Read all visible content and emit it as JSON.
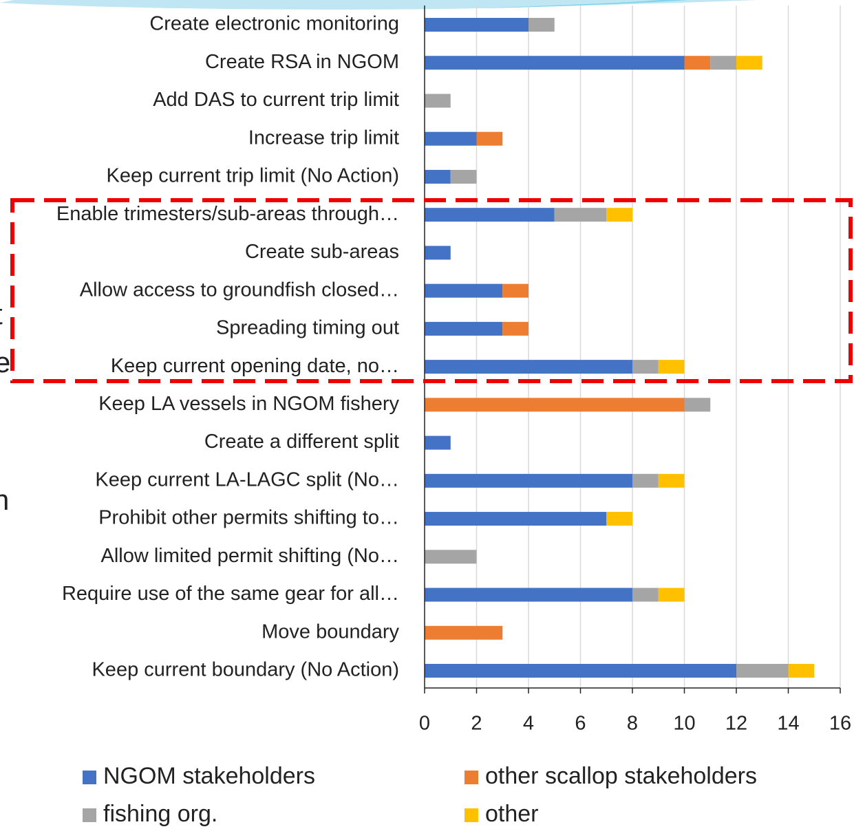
{
  "chart_data": {
    "type": "stacked-barh",
    "categories": [
      "Create electronic monitoring",
      "Create RSA in NGOM",
      "Add DAS to current trip limit",
      "Increase trip limit",
      "Keep current trip limit (No Action)",
      "Enable trimesters/sub-areas through…",
      "Create sub-areas",
      "Allow access to groundfish closed…",
      "Spreading timing out",
      "Keep current opening date, no…",
      "Keep LA vessels in NGOM fishery",
      "Create a different split",
      "Keep current LA-LAGC split (No…",
      "Prohibit other permits shifting to…",
      "Allow limited permit shifting (No…",
      "Require use of the same gear for all…",
      "Move boundary",
      "Keep current boundary (No Action)"
    ],
    "series": [
      {
        "name": "NGOM stakeholders",
        "color": "#4472c4",
        "values": [
          4,
          10,
          0,
          2,
          1,
          5,
          1,
          3,
          3,
          8,
          0,
          1,
          8,
          7,
          0,
          8,
          0,
          12
        ]
      },
      {
        "name": "other scallop stakeholders",
        "color": "#ed7d31",
        "values": [
          0,
          1,
          0,
          1,
          0,
          0,
          0,
          1,
          1,
          0,
          10,
          0,
          0,
          0,
          0,
          0,
          3,
          0
        ]
      },
      {
        "name": "fishing org.",
        "color": "#a5a5a5",
        "values": [
          1,
          1,
          1,
          0,
          1,
          2,
          0,
          0,
          0,
          1,
          1,
          0,
          1,
          0,
          2,
          1,
          0,
          2
        ]
      },
      {
        "name": "other",
        "color": "#ffc000",
        "values": [
          0,
          1,
          0,
          0,
          0,
          1,
          0,
          0,
          0,
          1,
          0,
          0,
          1,
          1,
          0,
          1,
          0,
          1
        ]
      }
    ],
    "xlim": [
      0,
      16
    ],
    "xticks": [
      0,
      2,
      4,
      6,
      8,
      10,
      12,
      14,
      16
    ],
    "grid": true,
    "legend": "bottom"
  },
  "background_text": [
    "t",
    "e",
    "n"
  ]
}
